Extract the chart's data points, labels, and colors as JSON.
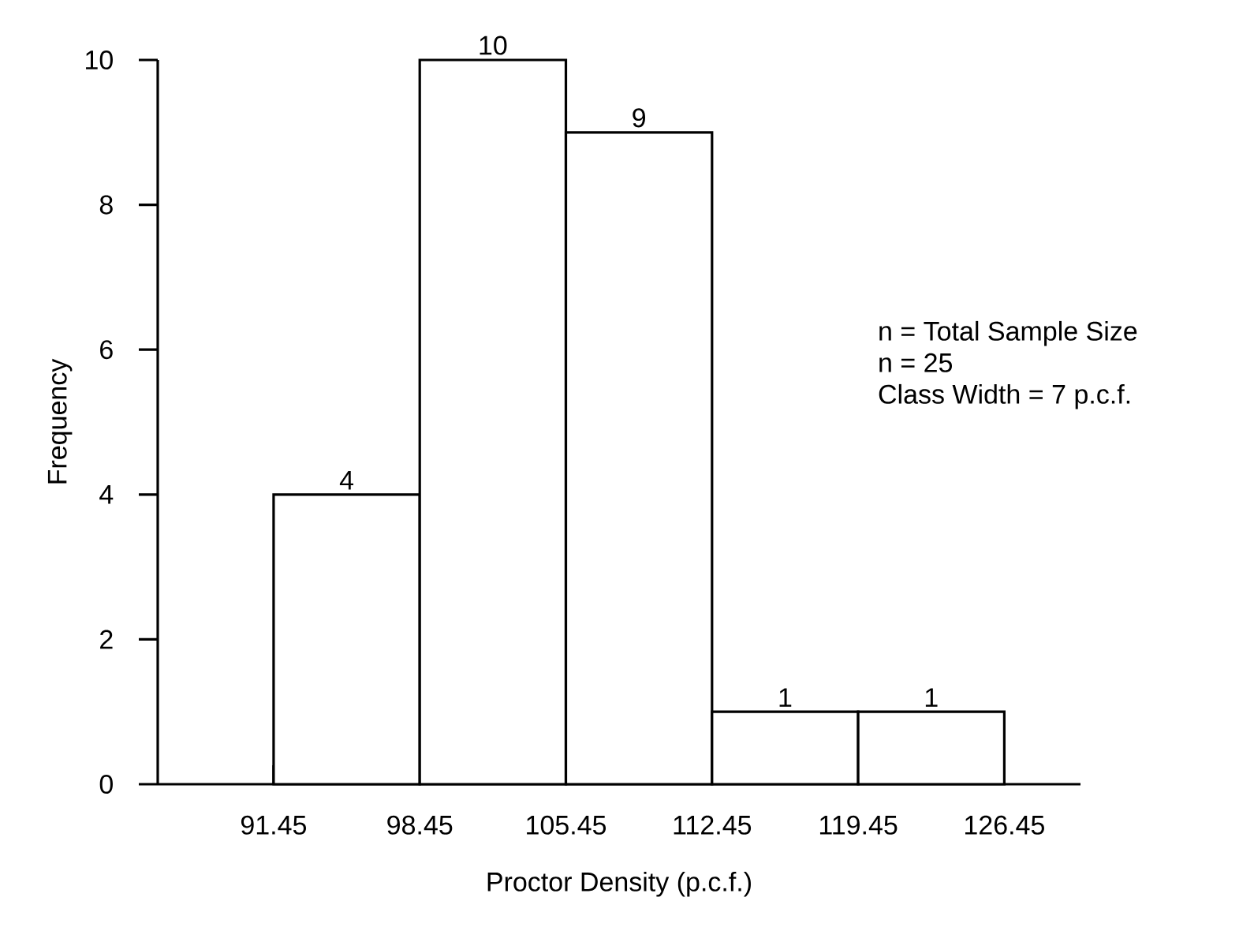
{
  "chart_data": {
    "type": "histogram",
    "xlabel": "Proctor Density (p.c.f.)",
    "ylabel": "Frequency",
    "bins": [
      91.45,
      98.45,
      105.45,
      112.45,
      119.45,
      126.45
    ],
    "values": [
      4,
      10,
      9,
      1,
      1
    ],
    "color": "#ffffff",
    "xlim": [
      85.9,
      130.1
    ],
    "ylim": [
      0,
      10
    ],
    "xticks": [
      91.45,
      98.45,
      105.45,
      112.45,
      119.45,
      126.45
    ],
    "yticks": [
      0,
      2,
      4,
      6,
      8,
      10
    ],
    "data_labels": true,
    "annotations": [
      "n = Total Sample Size",
      "n = 25",
      "Class Width = 7 p.c.f."
    ]
  }
}
